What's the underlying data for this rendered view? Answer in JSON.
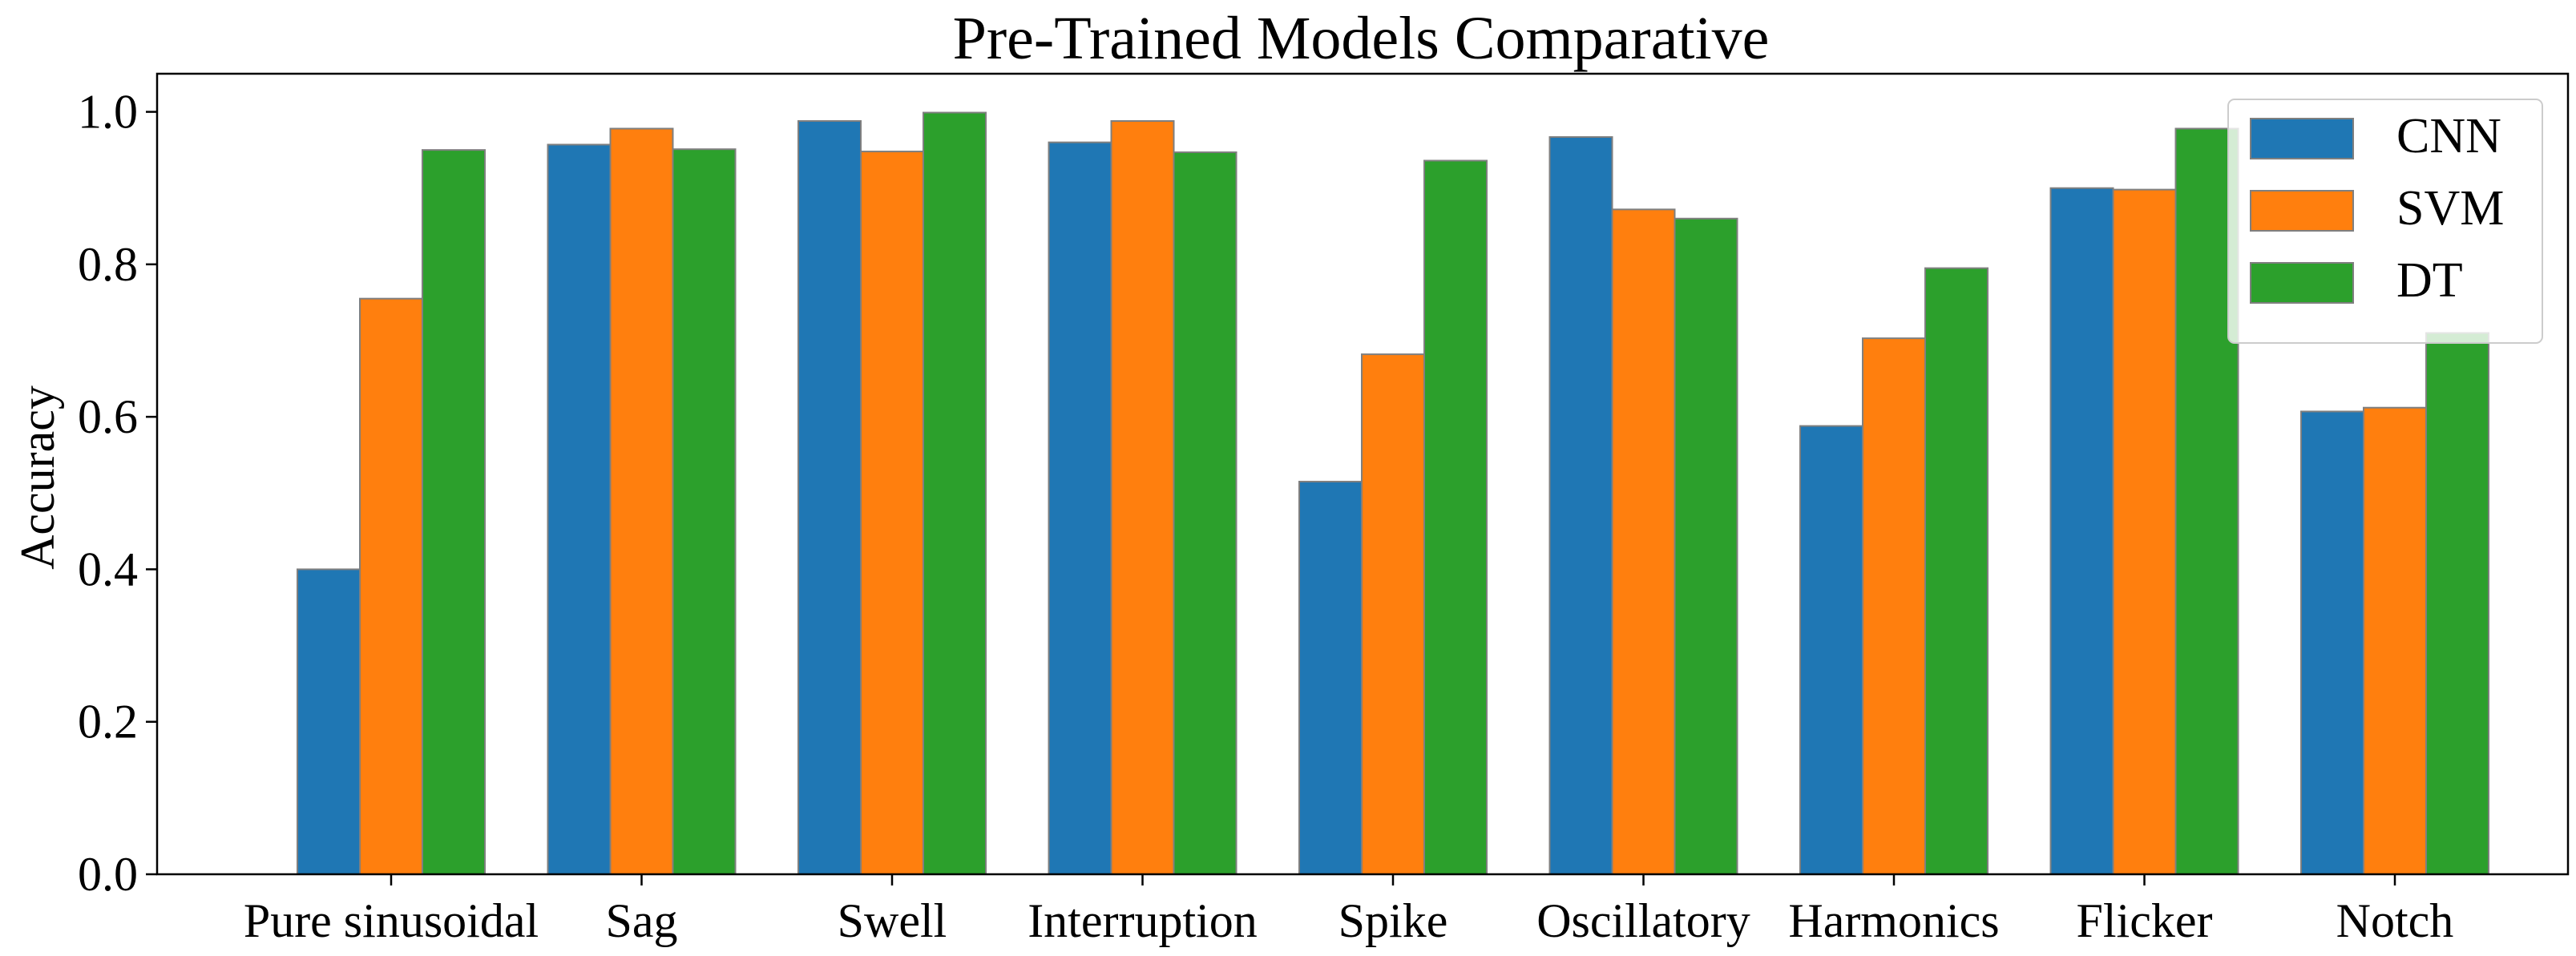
{
  "chart_data": {
    "type": "bar",
    "title": "Pre-Trained Models Comparative",
    "xlabel": "",
    "ylabel": "Accuracy",
    "ylim": [
      0,
      1.05
    ],
    "yticks": [
      "0.0",
      "0.2",
      "0.4",
      "0.6",
      "0.8",
      "1.0"
    ],
    "categories": [
      "Pure sinusoidal",
      "Sag",
      "Swell",
      "Interruption",
      "Spike",
      "Oscillatory",
      "Harmonics",
      "Flicker",
      "Notch"
    ],
    "series": [
      {
        "name": "CNN",
        "color": "#1f77b4",
        "values": [
          0.4,
          0.957,
          0.988,
          0.96,
          0.515,
          0.967,
          0.588,
          0.9,
          0.607
        ]
      },
      {
        "name": "SVM",
        "color": "#ff7f0e",
        "values": [
          0.755,
          0.978,
          0.948,
          0.988,
          0.682,
          0.872,
          0.703,
          0.898,
          0.612
        ]
      },
      {
        "name": "DT",
        "color": "#2ca02c",
        "values": [
          0.95,
          0.951,
          0.999,
          0.947,
          0.936,
          0.86,
          0.795,
          0.978,
          0.71
        ]
      }
    ],
    "grid": false,
    "legend_position": "top-right"
  }
}
